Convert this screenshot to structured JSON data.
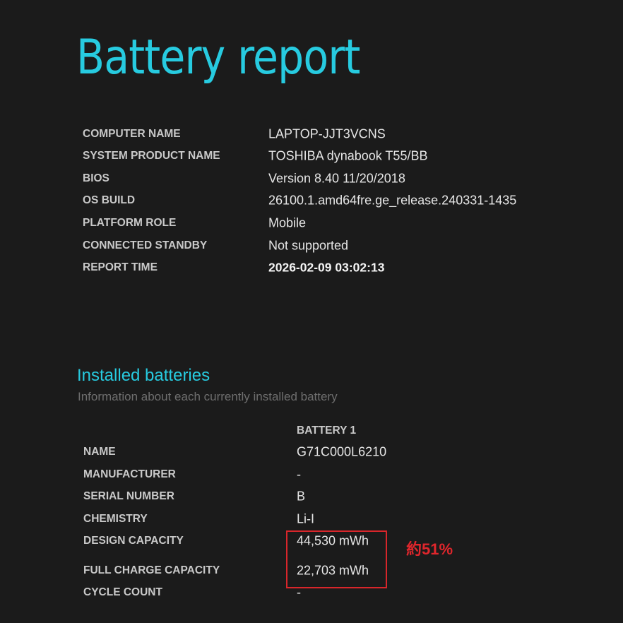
{
  "title": "Battery report",
  "system_info": [
    {
      "label": "COMPUTER NAME",
      "value": "LAPTOP-JJT3VCNS"
    },
    {
      "label": "SYSTEM PRODUCT NAME",
      "value": "TOSHIBA dynabook T55/BB"
    },
    {
      "label": "BIOS",
      "value": "Version 8.40 11/20/2018"
    },
    {
      "label": "OS BUILD",
      "value": "26100.1.amd64fre.ge_release.240331-1435"
    },
    {
      "label": "PLATFORM ROLE",
      "value": "Mobile"
    },
    {
      "label": "CONNECTED STANDBY",
      "value": "Not supported"
    },
    {
      "label": "REPORT TIME",
      "value": "2026-02-09  03:02:13"
    }
  ],
  "installed_batteries": {
    "heading": "Installed batteries",
    "subtitle": "Information about each currently installed battery",
    "column_header": "BATTERY 1",
    "rows": [
      {
        "label": "NAME",
        "value": "G71C000L6210"
      },
      {
        "label": "MANUFACTURER",
        "value": "-"
      },
      {
        "label": "SERIAL NUMBER",
        "value": "B"
      },
      {
        "label": "CHEMISTRY",
        "value": "Li-I"
      },
      {
        "label": "DESIGN CAPACITY",
        "value": "44,530 mWh"
      },
      {
        "label": "FULL CHARGE CAPACITY",
        "value": "22,703 mWh"
      },
      {
        "label": "CYCLE COUNT",
        "value": "-"
      }
    ]
  },
  "annotation": {
    "text": "約51%",
    "color": "#e0262c"
  },
  "colors": {
    "accent": "#27cbe0",
    "background": "#1b1b1b",
    "highlight_box": "#d8262b"
  }
}
